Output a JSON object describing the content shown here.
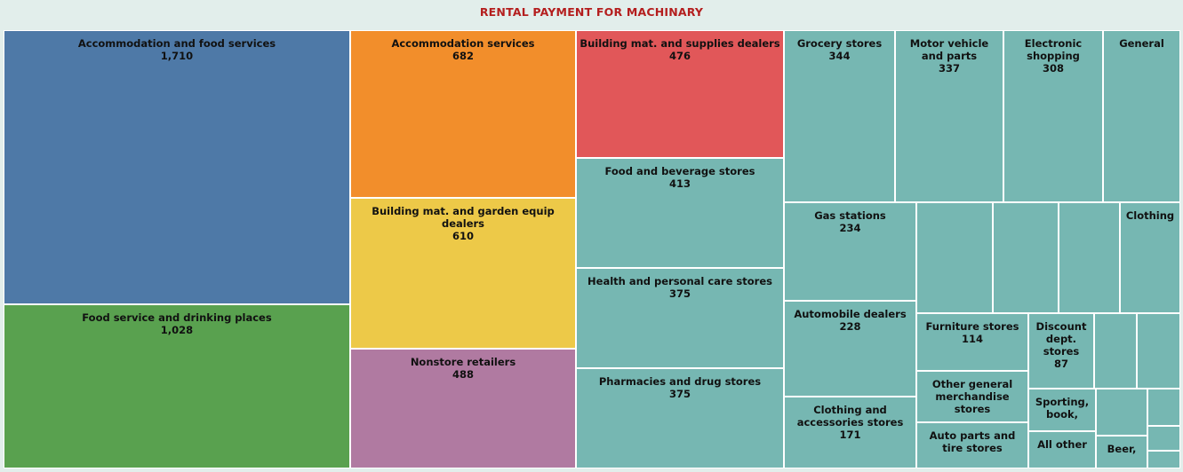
{
  "title": "RENTAL PAYMENT FOR MACHINARY",
  "colors": {
    "title": "#b41e1e",
    "background": "#e2eeeb",
    "accommodation_food_services": "#4e79a7",
    "food_service_drinking": "#59a14f",
    "accommodation_services": "#f28e2b",
    "building_garden": "#edc948",
    "nonstore": "#b07aa1",
    "building_supplies": "#e15759",
    "retail_other": "#76b7b2"
  },
  "chart_data": {
    "type": "treemap",
    "title": "RENTAL PAYMENT FOR MACHINARY",
    "items": [
      {
        "label": "Accommodation and food services",
        "value": 1710,
        "display_value": "1,710",
        "color": "#4e79a7"
      },
      {
        "label": "Food service and drinking places",
        "value": 1028,
        "display_value": "1,028",
        "color": "#59a14f"
      },
      {
        "label": "Accommodation services",
        "value": 682,
        "display_value": "682",
        "color": "#f28e2b"
      },
      {
        "label": "Building mat. and garden equip dealers",
        "value": 610,
        "display_value": "610",
        "color": "#edc948"
      },
      {
        "label": "Nonstore retailers",
        "value": 488,
        "display_value": "488",
        "color": "#b07aa1"
      },
      {
        "label": "Building mat. and supplies dealers",
        "value": 476,
        "display_value": "476",
        "color": "#e15759"
      },
      {
        "label": "Food and beverage stores",
        "value": 413,
        "display_value": "413",
        "color": "#76b7b2"
      },
      {
        "label": "Health and personal care stores",
        "value": 375,
        "display_value": "375",
        "color": "#76b7b2"
      },
      {
        "label": "Pharmacies and drug stores",
        "value": 375,
        "display_value": "375",
        "color": "#76b7b2"
      },
      {
        "label": "Grocery stores",
        "value": 344,
        "display_value": "344",
        "color": "#76b7b2"
      },
      {
        "label": "Motor vehicle and parts",
        "value": 337,
        "display_value": "337",
        "color": "#76b7b2"
      },
      {
        "label": "Electronic shopping",
        "value": 308,
        "display_value": "308",
        "color": "#76b7b2"
      },
      {
        "label": "General",
        "value": null,
        "display_value": "",
        "color": "#76b7b2"
      },
      {
        "label": "Gas stations",
        "value": 234,
        "display_value": "234",
        "color": "#76b7b2"
      },
      {
        "label": "",
        "value": null,
        "display_value": "",
        "color": "#76b7b2"
      },
      {
        "label": "",
        "value": null,
        "display_value": "",
        "color": "#76b7b2"
      },
      {
        "label": "",
        "value": null,
        "display_value": "",
        "color": "#76b7b2"
      },
      {
        "label": "Clothing",
        "value": null,
        "display_value": "",
        "color": "#76b7b2"
      },
      {
        "label": "Automobile dealers",
        "value": 228,
        "display_value": "228",
        "color": "#76b7b2"
      },
      {
        "label": "Furniture stores",
        "value": 114,
        "display_value": "114",
        "color": "#76b7b2"
      },
      {
        "label": "Discount dept. stores",
        "value": 87,
        "display_value": "87",
        "color": "#76b7b2"
      },
      {
        "label": "",
        "value": null,
        "display_value": "",
        "color": "#76b7b2"
      },
      {
        "label": "",
        "value": null,
        "display_value": "",
        "color": "#76b7b2"
      },
      {
        "label": "Clothing and accessories stores",
        "value": 171,
        "display_value": "171",
        "color": "#76b7b2"
      },
      {
        "label": "Other general merchandise stores",
        "value": null,
        "display_value": "",
        "color": "#76b7b2"
      },
      {
        "label": "Auto parts and tire stores",
        "value": null,
        "display_value": "",
        "color": "#76b7b2"
      },
      {
        "label": "Sporting, book,",
        "value": null,
        "display_value": "",
        "color": "#76b7b2"
      },
      {
        "label": "All other",
        "value": null,
        "display_value": "",
        "color": "#76b7b2"
      },
      {
        "label": "",
        "value": null,
        "display_value": "",
        "color": "#76b7b2"
      },
      {
        "label": "Beer,",
        "value": null,
        "display_value": "",
        "color": "#76b7b2"
      },
      {
        "label": "",
        "value": null,
        "display_value": "",
        "color": "#76b7b2"
      },
      {
        "label": "",
        "value": null,
        "display_value": "",
        "color": "#76b7b2"
      },
      {
        "label": "",
        "value": null,
        "display_value": "",
        "color": "#76b7b2"
      }
    ]
  }
}
